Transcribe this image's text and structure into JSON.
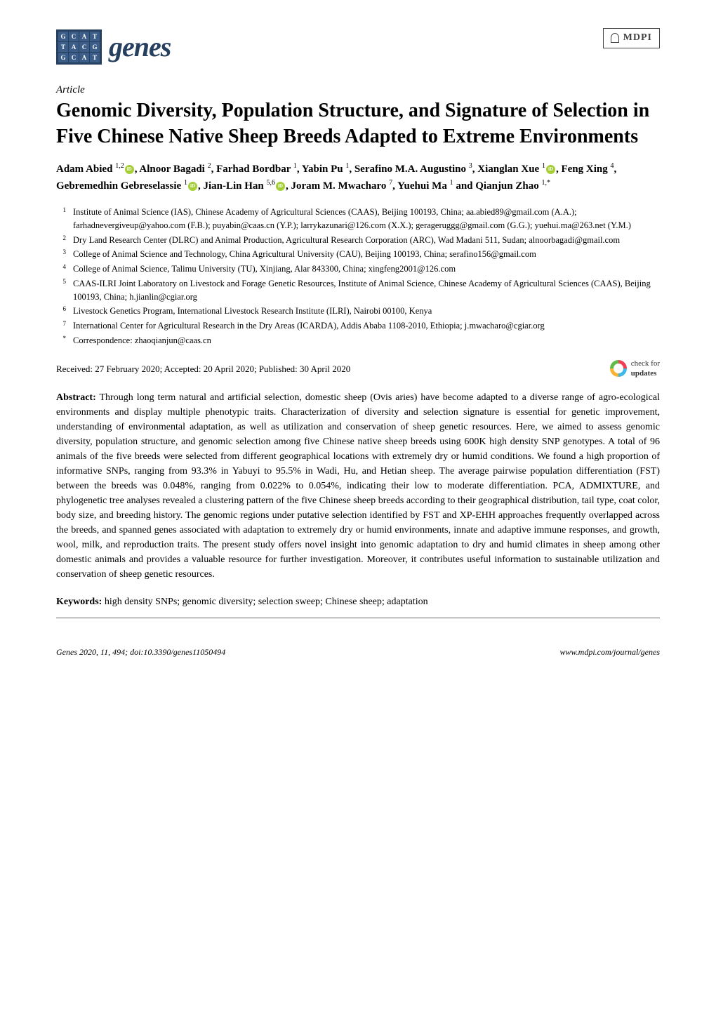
{
  "journal": {
    "logo_letters": [
      "G",
      "C",
      "A",
      "T",
      "T",
      "A",
      "C",
      "G",
      "G",
      "C",
      "A",
      "T"
    ],
    "logo_word": "genes",
    "publisher": "MDPI"
  },
  "article_type": "Article",
  "title": "Genomic Diversity, Population Structure, and Signature of Selection in Five Chinese Native Sheep Breeds Adapted to Extreme Environments",
  "authors_html": "Adam Abied <span class='sup'>1,2</span><span class='orcid'></span>, Alnoor Bagadi <span class='sup'>2</span>, Farhad Bordbar <span class='sup'>1</span>, Yabin Pu <span class='sup'>1</span>, Serafino M.A. Augustino <span class='sup'>3</span>, Xianglan Xue <span class='sup'>1</span><span class='orcid'></span>, Feng Xing <span class='sup'>4</span>, Gebremedhin Gebreselassie <span class='sup'>1</span><span class='orcid'></span>, Jian-Lin Han <span class='sup'>5,6</span><span class='orcid'></span>, Joram M. Mwacharo <span class='sup'>7</span>, Yuehui Ma <span class='sup'>1</span> and Qianjun Zhao <span class='sup'>1,*</span>",
  "affiliations": [
    {
      "num": "1",
      "text": "Institute of Animal Science (IAS), Chinese Academy of Agricultural Sciences (CAAS), Beijing 100193, China; aa.abied89@gmail.com (A.A.); farhadnevergiveup@yahoo.com (F.B.); puyabin@caas.cn (Y.P.); larrykazunari@126.com (X.X.); gerageruggg@gmail.com (G.G.); yuehui.ma@263.net (Y.M.)"
    },
    {
      "num": "2",
      "text": "Dry Land Research Center (DLRC) and Animal Production, Agricultural Research Corporation (ARC), Wad Madani 511, Sudan; alnoorbagadi@gmail.com"
    },
    {
      "num": "3",
      "text": "College of Animal Science and Technology, China Agricultural University (CAU), Beijing 100193, China; serafino156@gmail.com"
    },
    {
      "num": "4",
      "text": "College of Animal Science, Talimu University (TU), Xinjiang, Alar 843300, China; xingfeng2001@126.com"
    },
    {
      "num": "5",
      "text": "CAAS-ILRI Joint Laboratory on Livestock and Forage Genetic Resources, Institute of Animal Science, Chinese Academy of Agricultural Sciences (CAAS), Beijing 100193, China; h.jianlin@cgiar.org"
    },
    {
      "num": "6",
      "text": "Livestock Genetics Program, International Livestock Research Institute (ILRI), Nairobi 00100, Kenya"
    },
    {
      "num": "7",
      "text": "International Center for Agricultural Research in the Dry Areas (ICARDA), Addis Ababa 1108-2010, Ethiopia; j.mwacharo@cgiar.org"
    },
    {
      "num": "*",
      "text": "Correspondence: zhaoqianjun@caas.cn"
    }
  ],
  "dates": "Received: 27 February 2020; Accepted: 20 April 2020; Published: 30 April 2020",
  "check_updates_label": "check for",
  "check_updates_bold": "updates",
  "abstract_label": "Abstract:",
  "abstract": "Through long term natural and artificial selection, domestic sheep (Ovis aries) have become adapted to a diverse range of agro-ecological environments and display multiple phenotypic traits. Characterization of diversity and selection signature is essential for genetic improvement, understanding of environmental adaptation, as well as utilization and conservation of sheep genetic resources. Here, we aimed to assess genomic diversity, population structure, and genomic selection among five Chinese native sheep breeds using 600K high density SNP genotypes. A total of 96 animals of the five breeds were selected from different geographical locations with extremely dry or humid conditions. We found a high proportion of informative SNPs, ranging from 93.3% in Yabuyi to 95.5% in Wadi, Hu, and Hetian sheep. The average pairwise population differentiation (FST) between the breeds was 0.048%, ranging from 0.022% to 0.054%, indicating their low to moderate differentiation. PCA, ADMIXTURE, and phylogenetic tree analyses revealed a clustering pattern of the five Chinese sheep breeds according to their geographical distribution, tail type, coat color, body size, and breeding history. The genomic regions under putative selection identified by FST and XP-EHH approaches frequently overlapped across the breeds, and spanned genes associated with adaptation to extremely dry or humid environments, innate and adaptive immune responses, and growth, wool, milk, and reproduction traits. The present study offers novel insight into genomic adaptation to dry and humid climates in sheep among other domestic animals and provides a valuable resource for further investigation. Moreover, it contributes useful information to sustainable utilization and conservation of sheep genetic resources.",
  "keywords_label": "Keywords:",
  "keywords": "high density SNPs; genomic diversity; selection sweep; Chinese sheep; adaptation",
  "footer": {
    "left": "Genes 2020, 11, 494; doi:10.3390/genes11050494",
    "right": "www.mdpi.com/journal/genes"
  },
  "colors": {
    "logo_bg": "#274060",
    "logo_cell": "#3b5d87",
    "orcid": "#a6ce39",
    "text": "#000000",
    "background": "#ffffff"
  }
}
